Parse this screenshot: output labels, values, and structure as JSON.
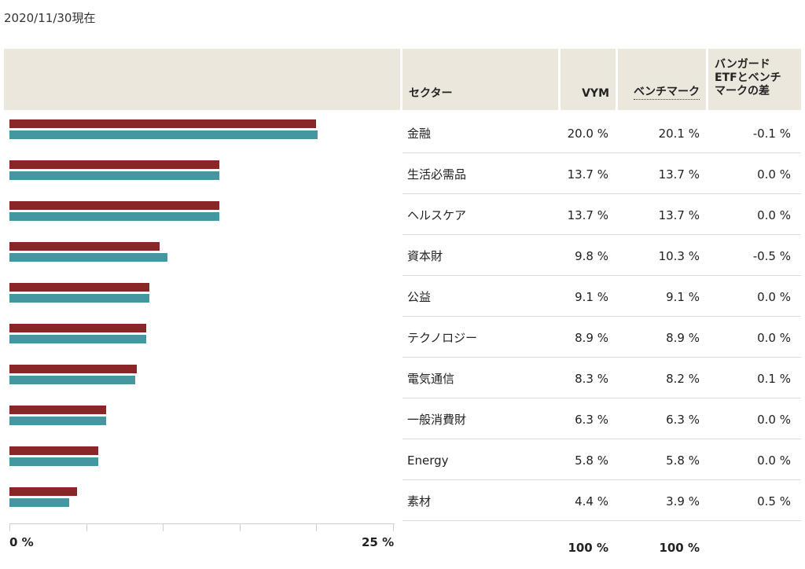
{
  "as_of": "2020/11/30現在",
  "header": {
    "sector": "セクター",
    "vym": "VYM",
    "benchmark": "ベンチマーク",
    "diff_line1": "バンガード",
    "diff_line2": "ETFとベンチ",
    "diff_line3": "マークの差"
  },
  "rows": [
    {
      "sector": "金融",
      "vym": "20.0 %",
      "bm": "20.1 %",
      "diff": "-0.1 %"
    },
    {
      "sector": "生活必需品",
      "vym": "13.7 %",
      "bm": "13.7 %",
      "diff": "0.0 %"
    },
    {
      "sector": "ヘルスケア",
      "vym": "13.7 %",
      "bm": "13.7 %",
      "diff": "0.0 %"
    },
    {
      "sector": "資本財",
      "vym": "9.8 %",
      "bm": "10.3 %",
      "diff": "-0.5 %"
    },
    {
      "sector": "公益",
      "vym": "9.1 %",
      "bm": "9.1 %",
      "diff": "0.0 %"
    },
    {
      "sector": "テクノロジー",
      "vym": "8.9 %",
      "bm": "8.9 %",
      "diff": "0.0 %"
    },
    {
      "sector": "電気通信",
      "vym": "8.3 %",
      "bm": "8.2 %",
      "diff": "0.1 %"
    },
    {
      "sector": "一般消費財",
      "vym": "6.3 %",
      "bm": "6.3 %",
      "diff": "0.0 %"
    },
    {
      "sector": "Energy",
      "vym": "5.8 %",
      "bm": "5.8 %",
      "diff": "0.0 %"
    },
    {
      "sector": "素材",
      "vym": "4.4 %",
      "bm": "3.9 %",
      "diff": "0.5 %"
    }
  ],
  "totals": {
    "vym": "100 %",
    "bm": "100 %"
  },
  "axis": {
    "min_label": "0 %",
    "max_label": "25 %"
  },
  "colors": {
    "vym": "#8a2528",
    "benchmark": "#4497a0",
    "header_bg": "#ece7dd"
  },
  "chart_data": {
    "type": "bar",
    "orientation": "horizontal",
    "categories": [
      "金融",
      "生活必需品",
      "ヘルスケア",
      "資本財",
      "公益",
      "テクノロジー",
      "電気通信",
      "一般消費財",
      "Energy",
      "素材"
    ],
    "series": [
      {
        "name": "VYM",
        "values": [
          20.0,
          13.7,
          13.7,
          9.8,
          9.1,
          8.9,
          8.3,
          6.3,
          5.8,
          4.4
        ]
      },
      {
        "name": "ベンチマーク",
        "values": [
          20.1,
          13.7,
          13.7,
          10.3,
          9.1,
          8.9,
          8.2,
          6.3,
          5.8,
          3.9
        ]
      }
    ],
    "xlim": [
      0,
      25
    ],
    "grid": false
  }
}
